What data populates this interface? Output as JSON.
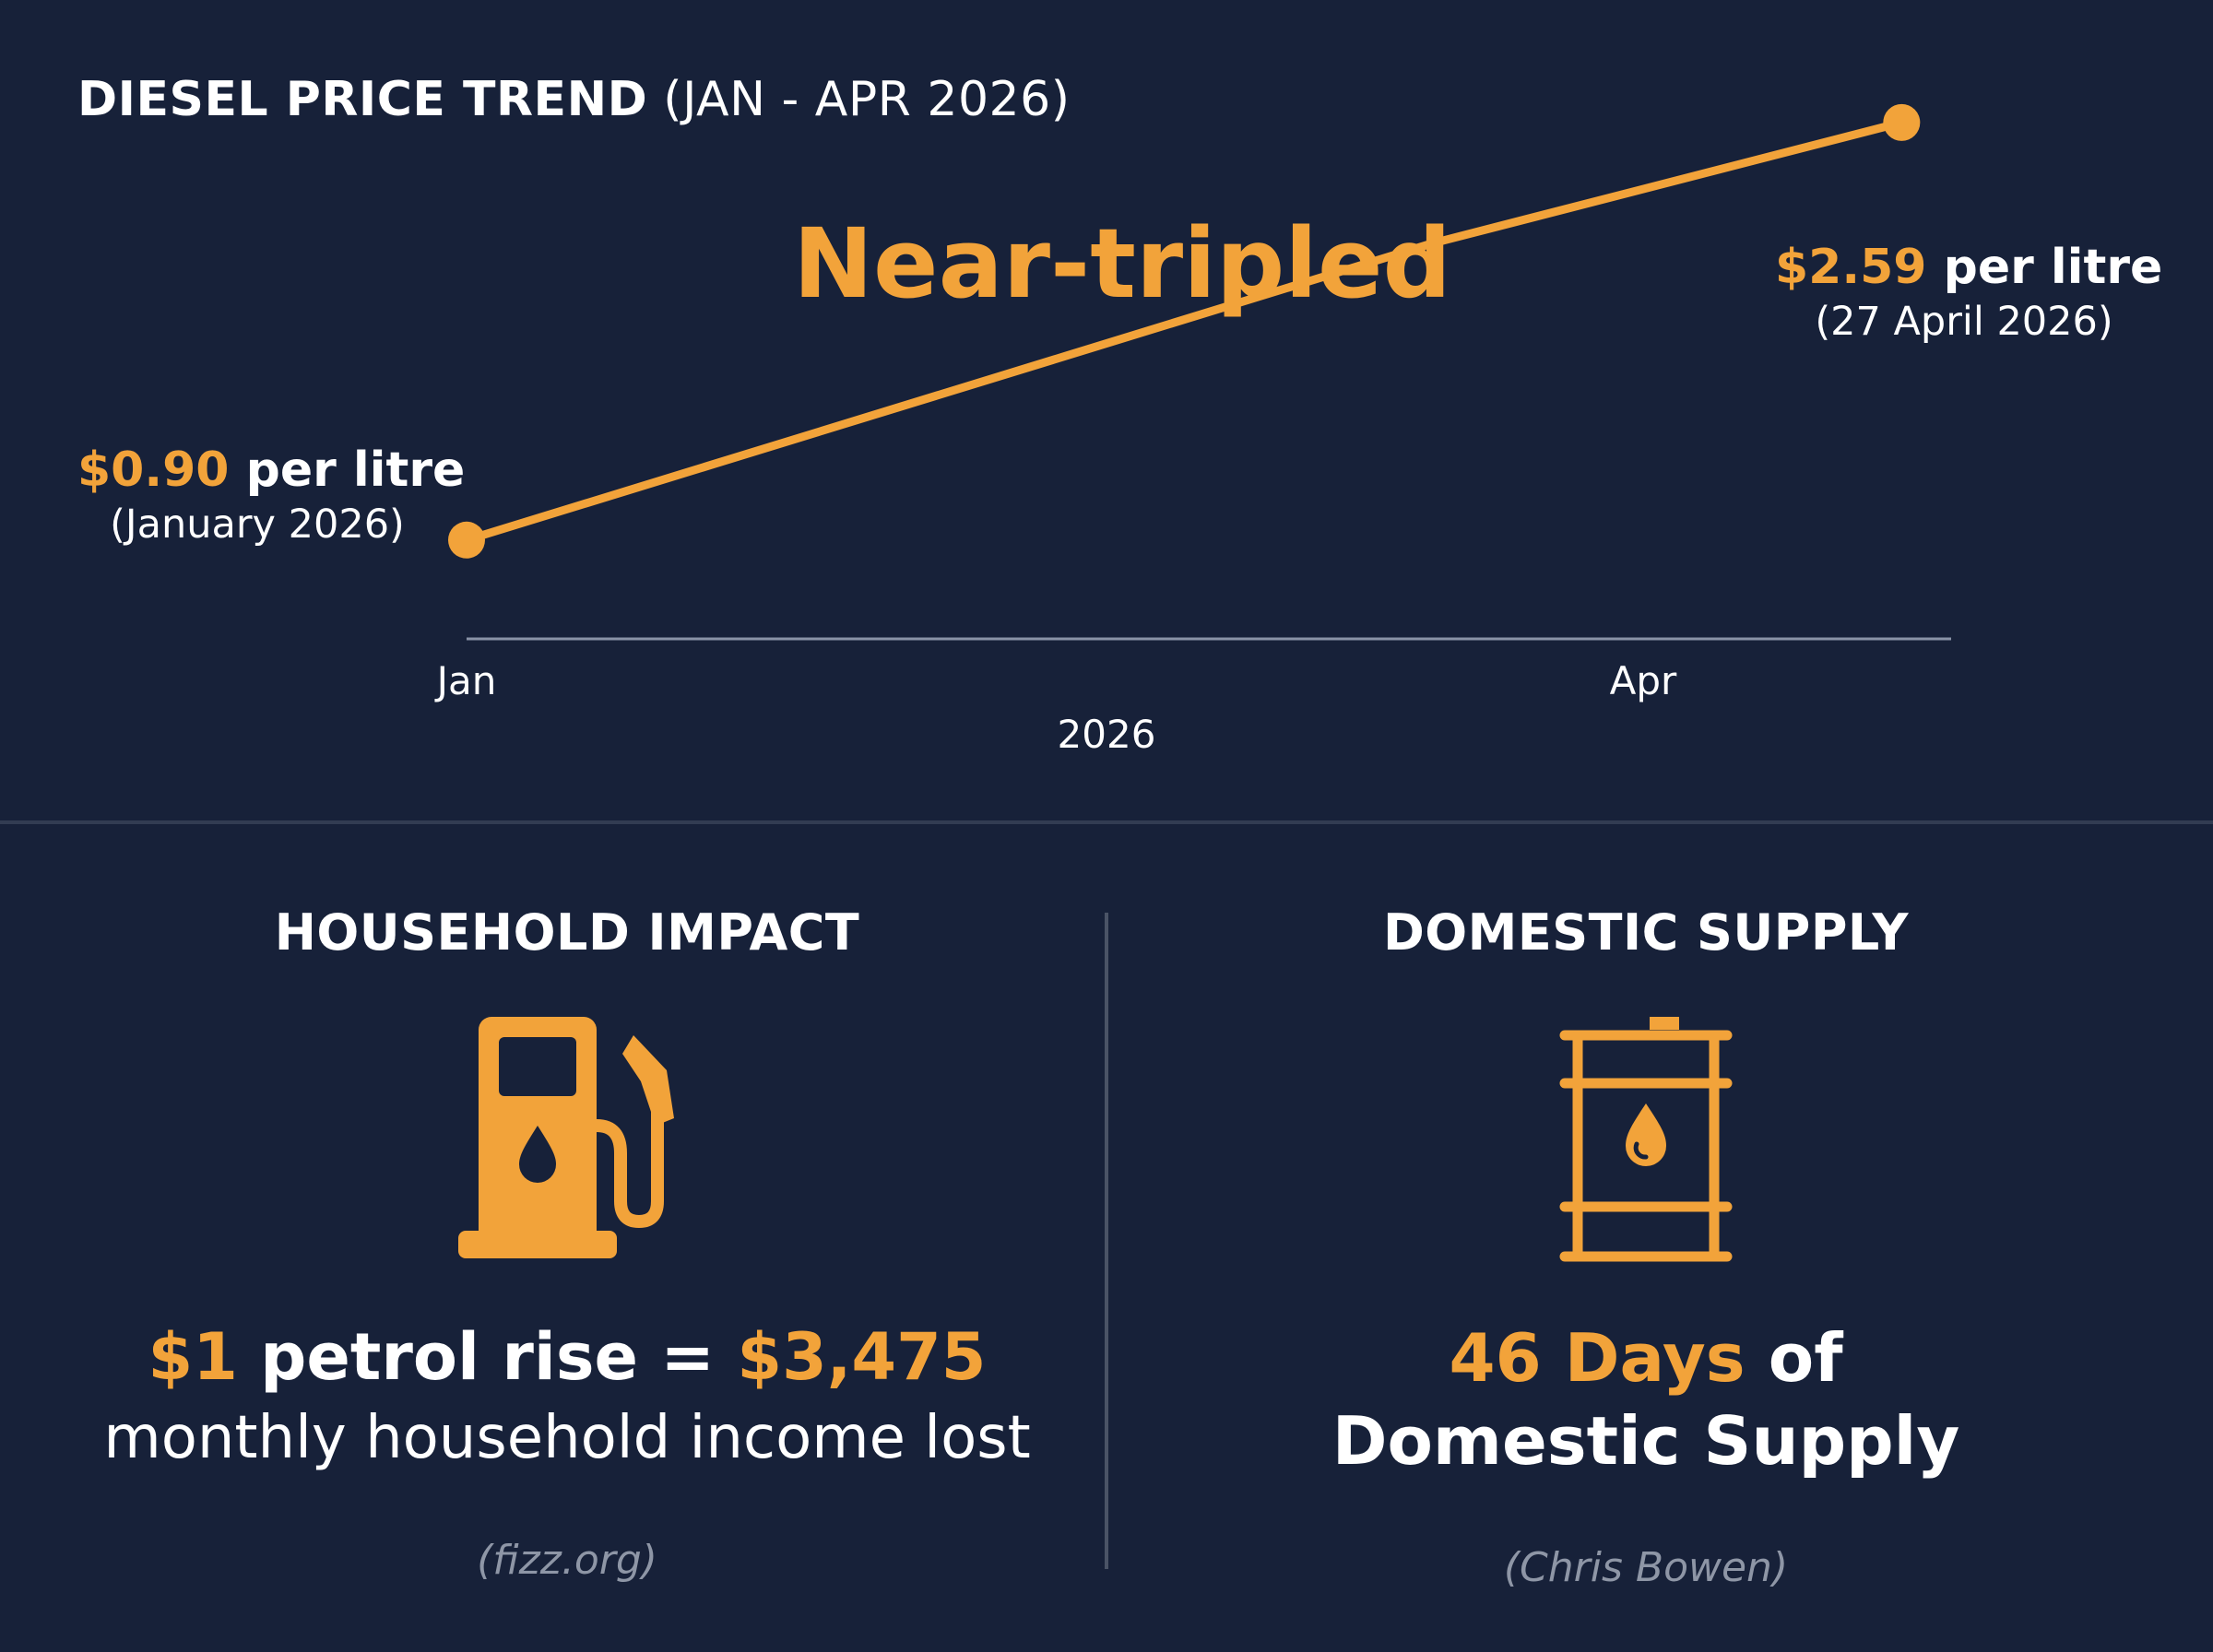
{
  "title": {
    "main": "DIESEL PRICE TREND",
    "range": "(JAN - APR 2026)"
  },
  "headline": "Near-tripled",
  "chart_data": {
    "type": "line",
    "title": "DIESEL PRICE TREND (JAN - APR 2026)",
    "xlabel": "2026",
    "ylabel": "",
    "x_ticks": [
      "Jan",
      "Apr"
    ],
    "unit": "$ per litre",
    "ylim": [
      0.5,
      2.75
    ],
    "series": [
      {
        "points": [
          {
            "date": "2026-01",
            "value": 0.9
          },
          {
            "date": "2026-03-20",
            "value": 2.1
          },
          {
            "date": "2026-04-27",
            "value": 2.59
          }
        ]
      }
    ],
    "annotations": [
      {
        "value_text": "$0.90",
        "unit_text": "per litre",
        "date_text": "(January 2026)"
      },
      {
        "value_text": "$2.59",
        "unit_text": "per litre",
        "date_text": "(27 April 2026)"
      }
    ]
  },
  "panels": {
    "household": {
      "heading": "HOUSEHOLD IMPACT",
      "icon": "fuel-pump-icon",
      "stat_a": "$1",
      "stat_b": " petrol rise = ",
      "stat_c": "$3,475",
      "stat_line2": "monthly household income lost",
      "source": "(fizz.org)"
    },
    "supply": {
      "heading": "DOMESTIC SUPPLY",
      "icon": "oil-barrel-icon",
      "stat_a": "46 Days",
      "stat_b": " of",
      "stat_line2": "Domestic Supply",
      "source": "(Chris Bowen)"
    }
  },
  "colors": {
    "accent": "#f2a33a",
    "background": "#172139",
    "axis": "#8a93a6",
    "divider": "#4a5366"
  }
}
